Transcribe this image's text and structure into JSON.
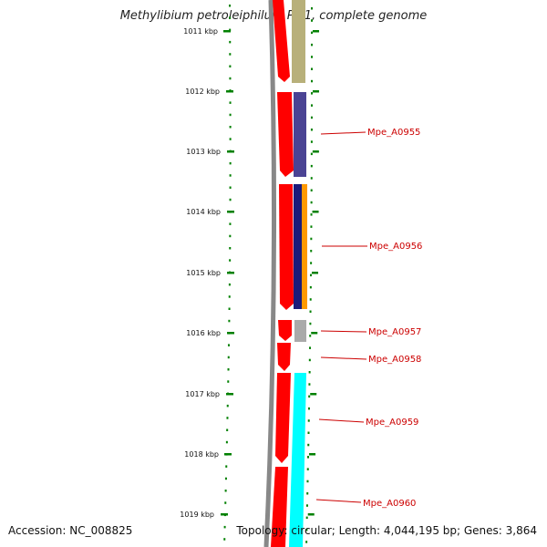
{
  "title": "Methylibium petroleiphilum PM1, complete genome",
  "accession": "Accession: NC_008825",
  "summary": "Topology: circular; Length: 4,044,195 bp; Genes: 3,864",
  "ruler": [
    "1011 kbp",
    "1012 kbp",
    "1013 kbp",
    "1014 kbp",
    "1015 kbp",
    "1016 kbp",
    "1017 kbp",
    "1018 kbp",
    "1019 kbp"
  ],
  "genes": [
    {
      "label": "Mpe_A0955",
      "color": "#4b4394"
    },
    {
      "label": "Mpe_A0956",
      "color": "#1b1b7a"
    },
    {
      "label": "Mpe_A0957",
      "color": "#aaaaaa"
    },
    {
      "label": "Mpe_A0958",
      "color": "#ff0000"
    },
    {
      "label": "Mpe_A0959",
      "color": "#00ffff"
    },
    {
      "label": "Mpe_A0960",
      "color": "#00ffff"
    }
  ],
  "colors": {
    "forward_cds": "#ff0000",
    "backbone": "#888888",
    "tick": "#008000",
    "label": "#cc0000"
  }
}
